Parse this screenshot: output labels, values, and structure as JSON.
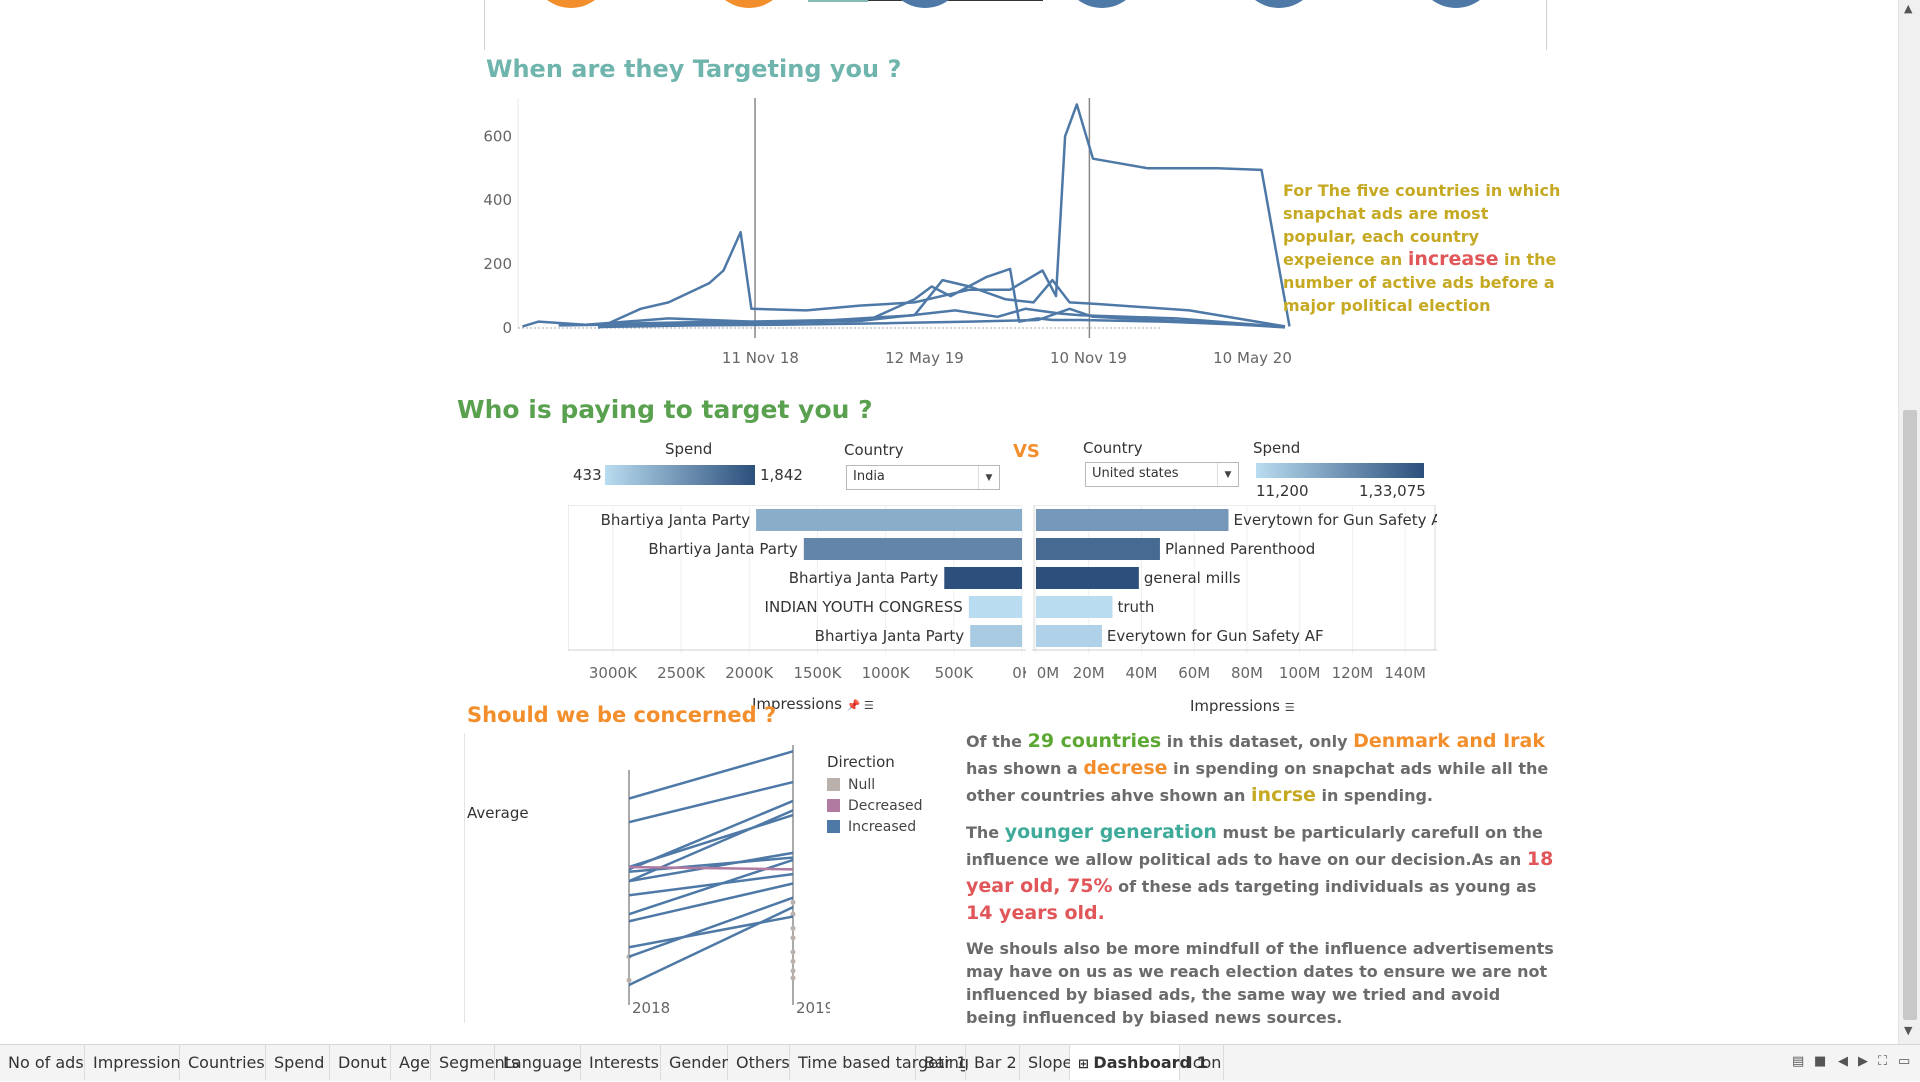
{
  "colors": {
    "title_teal": "#6fb5ad",
    "title_green": "#59a14f",
    "title_orange": "#f28e2b",
    "line_blue": "#4e79a7",
    "bar_light": "#9fcde8",
    "bar_dark": "#2c4f7c",
    "decreased": "#b07aa1",
    "null_color": "#bab0ac",
    "annotation_gold": "#c6a923",
    "highlight_red": "#e15759"
  },
  "timing": {
    "title": "When are they Targeting you ?",
    "annotation": {
      "before": "For The five countries in which snapchat ads are most popular, each country expeience an",
      "highlight": "increase",
      "after": "in the number of active ads before a major political election"
    }
  },
  "payers": {
    "title": "Who is paying to target you ?",
    "vs_label": "VS",
    "left": {
      "spend_label": "Spend",
      "spend_min": "433",
      "spend_max": "1,842",
      "country_label": "Country",
      "country_value": "India",
      "axis_title": "Impressions",
      "axis_title_icons": "📌 ☰"
    },
    "right": {
      "spend_label": "Spend",
      "spend_min": "11,200",
      "spend_max": "1,33,075",
      "country_label": "Country",
      "country_value": "United states",
      "axis_title": "Impressions",
      "axis_title_icons": "☰"
    }
  },
  "concern": {
    "title": "Should we be concerned ?",
    "average_label": "Average",
    "legend_title": "Direction",
    "legend_items": [
      "Null",
      "Decreased",
      "Increased"
    ],
    "paragraph1": {
      "t1": "Of the",
      "h1": "29 countries",
      "t2": "in this dataset, only",
      "h2": "Denmark and Irak",
      "t3": "has shown a",
      "h3": "decrese",
      "t4": "in spending on snapchat ads while all the other countries ahve shown an",
      "h4": "incrse",
      "t5": "in spending."
    },
    "paragraph2": {
      "t1": "The",
      "h1": "younger generation",
      "t2": "must be particularly carefull on the influence we allow political ads to have on our decision.As an",
      "h2": "18 year old, 75%",
      "t3": "of these ads targeting individuals as young as",
      "h3": "14 years old."
    },
    "paragraph3": "We shouls also be more mindfull of the influence advertisements may have on us as we reach election dates to ensure we are not influenced by biased ads, the same way we tried and avoid being influenced by biased news sources."
  },
  "tabs": [
    {
      "label": "No of ads",
      "icon": ""
    },
    {
      "label": "Impression",
      "icon": ""
    },
    {
      "label": "Countries",
      "icon": ""
    },
    {
      "label": "Spend",
      "icon": ""
    },
    {
      "label": "Donut",
      "icon": ""
    },
    {
      "label": "Age",
      "icon": ""
    },
    {
      "label": "Segments",
      "icon": ""
    },
    {
      "label": "Language",
      "icon": ""
    },
    {
      "label": "Interests",
      "icon": ""
    },
    {
      "label": "Gender",
      "icon": ""
    },
    {
      "label": "Others",
      "icon": ""
    },
    {
      "label": "Time based targeting",
      "icon": ""
    },
    {
      "label": "Bar 1",
      "icon": ""
    },
    {
      "label": "Bar 2",
      "icon": ""
    },
    {
      "label": "Slope",
      "icon": ""
    },
    {
      "label": "Dashboard 1",
      "icon": "⊞",
      "active": true
    },
    {
      "label": "Icon",
      "icon": ""
    }
  ],
  "chart_data": [
    {
      "type": "line",
      "title": "When are they Targeting you ?",
      "x_tick_labels": [
        "11 Nov 18",
        "12 May 19",
        "10 Nov 19",
        "10 May 20"
      ],
      "y_ticks": [
        0,
        200,
        400,
        600
      ],
      "ylim": [
        0,
        720
      ],
      "x_domain": [
        "2018-02-15",
        "2020-07-15"
      ],
      "reference_lines_x": [
        "2018-11-05",
        "2019-11-11"
      ],
      "series": [
        {
          "points": [
            [
              "2018-05-15",
              0
            ],
            [
              "2018-07-01",
              60
            ],
            [
              "2018-08-01",
              80
            ],
            [
              "2018-09-15",
              140
            ],
            [
              "2018-10-01",
              180
            ],
            [
              "2018-10-20",
              300
            ],
            [
              "2018-11-01",
              60
            ],
            [
              "2019-01-01",
              55
            ],
            [
              "2019-03-01",
              70
            ],
            [
              "2019-05-01",
              80
            ],
            [
              "2019-07-01",
              120
            ],
            [
              "2019-08-15",
              120
            ],
            [
              "2019-09-20",
              180
            ],
            [
              "2019-10-05",
              100
            ],
            [
              "2019-10-15",
              600
            ],
            [
              "2019-10-28",
              700
            ],
            [
              "2019-11-15",
              530
            ],
            [
              "2020-01-15",
              500
            ],
            [
              "2020-04-01",
              500
            ],
            [
              "2020-05-20",
              495
            ],
            [
              "2020-06-20",
              5
            ]
          ]
        },
        {
          "points": [
            [
              "2018-02-20",
              5
            ],
            [
              "2018-03-10",
              20
            ],
            [
              "2018-05-01",
              10
            ],
            [
              "2018-07-01",
              15
            ],
            [
              "2018-10-01",
              20
            ],
            [
              "2019-01-01",
              20
            ],
            [
              "2019-03-15",
              30
            ],
            [
              "2019-05-01",
              90
            ],
            [
              "2019-05-20",
              130
            ],
            [
              "2019-06-10",
              100
            ],
            [
              "2019-07-20",
              160
            ],
            [
              "2019-08-15",
              185
            ],
            [
              "2019-08-25",
              20
            ],
            [
              "2019-09-15",
              30
            ],
            [
              "2019-10-01",
              25
            ],
            [
              "2019-11-01",
              25
            ],
            [
              "2020-02-01",
              20
            ],
            [
              "2020-06-15",
              5
            ]
          ]
        },
        {
          "points": [
            [
              "2018-05-01",
              10
            ],
            [
              "2018-08-01",
              30
            ],
            [
              "2018-11-01",
              20
            ],
            [
              "2019-02-01",
              25
            ],
            [
              "2019-05-01",
              40
            ],
            [
              "2019-06-01",
              150
            ],
            [
              "2019-07-01",
              130
            ],
            [
              "2019-08-10",
              90
            ],
            [
              "2019-09-10",
              80
            ],
            [
              "2019-10-01",
              150
            ],
            [
              "2019-10-20",
              80
            ],
            [
              "2019-11-20",
              75
            ],
            [
              "2020-03-01",
              55
            ],
            [
              "2020-06-15",
              5
            ]
          ]
        },
        {
          "points": [
            [
              "2018-04-01",
              8
            ],
            [
              "2018-07-15",
              12
            ],
            [
              "2018-11-01",
              15
            ],
            [
              "2019-03-01",
              22
            ],
            [
              "2019-06-15",
              55
            ],
            [
              "2019-08-01",
              35
            ],
            [
              "2019-09-01",
              60
            ],
            [
              "2019-10-10",
              45
            ],
            [
              "2019-11-01",
              40
            ],
            [
              "2020-02-15",
              30
            ],
            [
              "2020-06-15",
              3
            ]
          ]
        },
        {
          "points": [
            [
              "2018-05-15",
              3
            ],
            [
              "2018-09-01",
              8
            ],
            [
              "2018-12-01",
              10
            ],
            [
              "2019-04-01",
              15
            ],
            [
              "2019-07-01",
              20
            ],
            [
              "2019-09-15",
              25
            ],
            [
              "2019-10-20",
              60
            ],
            [
              "2019-11-15",
              35
            ],
            [
              "2020-03-01",
              20
            ],
            [
              "2020-06-15",
              2
            ]
          ]
        }
      ]
    },
    {
      "type": "bar",
      "orientation": "horizontal-reversed",
      "xlabel": "Impressions",
      "x_tick_labels": [
        "3000K",
        "2500K",
        "2000K",
        "1500K",
        "1000K",
        "500K",
        "0K"
      ],
      "xlim": [
        0,
        3300
      ],
      "unit": "K",
      "categories": [
        "Bhartiya Janta Party",
        "Bhartiya Janta Party",
        "Bhartiya Janta Party",
        "INDIAN YOUTH CONGRESS",
        "Bhartiya Janta Party"
      ],
      "values": [
        1950,
        1600,
        570,
        390,
        380
      ],
      "color_values": [
        900,
        1300,
        1842,
        433,
        600
      ]
    },
    {
      "type": "bar",
      "orientation": "horizontal",
      "xlabel": "Impressions",
      "x_tick_labels": [
        "0M",
        "20M",
        "40M",
        "60M",
        "80M",
        "100M",
        "120M",
        "140M"
      ],
      "xlim": [
        0,
        146
      ],
      "unit": "M",
      "categories": [
        "Everytown for Gun Safety AF",
        "Planned Parenthood",
        "general mills",
        "truth",
        "Everytown for Gun Safety AF"
      ],
      "values": [
        73,
        47,
        39,
        29,
        25
      ],
      "color_values": [
        70000,
        110000,
        133075,
        11200,
        20000
      ]
    },
    {
      "type": "slope",
      "x_labels": [
        "2018",
        "2019"
      ],
      "series": [
        {
          "direction": "Increased",
          "values": [
            0.79,
            0.99
          ]
        },
        {
          "direction": "Increased",
          "values": [
            0.69,
            0.86
          ]
        },
        {
          "direction": "Increased",
          "values": [
            0.49,
            0.78
          ]
        },
        {
          "direction": "Increased",
          "values": [
            0.5,
            0.72
          ]
        },
        {
          "direction": "Increased",
          "values": [
            0.44,
            0.74
          ]
        },
        {
          "direction": "Increased",
          "values": [
            0.48,
            0.54
          ]
        },
        {
          "direction": "Increased",
          "values": [
            0.44,
            0.56
          ]
        },
        {
          "direction": "Increased",
          "values": [
            0.38,
            0.47
          ]
        },
        {
          "direction": "Increased",
          "values": [
            0.3,
            0.53
          ]
        },
        {
          "direction": "Increased",
          "values": [
            0.27,
            0.43
          ]
        },
        {
          "direction": "Increased",
          "values": [
            0.16,
            0.29
          ]
        },
        {
          "direction": "Increased",
          "values": [
            0.12,
            0.37
          ]
        },
        {
          "direction": "Increased",
          "values": [
            0.0,
            0.33
          ]
        },
        {
          "direction": "Decreased",
          "values": [
            0.5,
            0.49
          ]
        }
      ],
      "null_points_2019": [
        0.35,
        0.3,
        0.24,
        0.2,
        0.14,
        0.1,
        0.06,
        0.03
      ],
      "null_points_2018": [
        0.12,
        0.02
      ]
    }
  ]
}
